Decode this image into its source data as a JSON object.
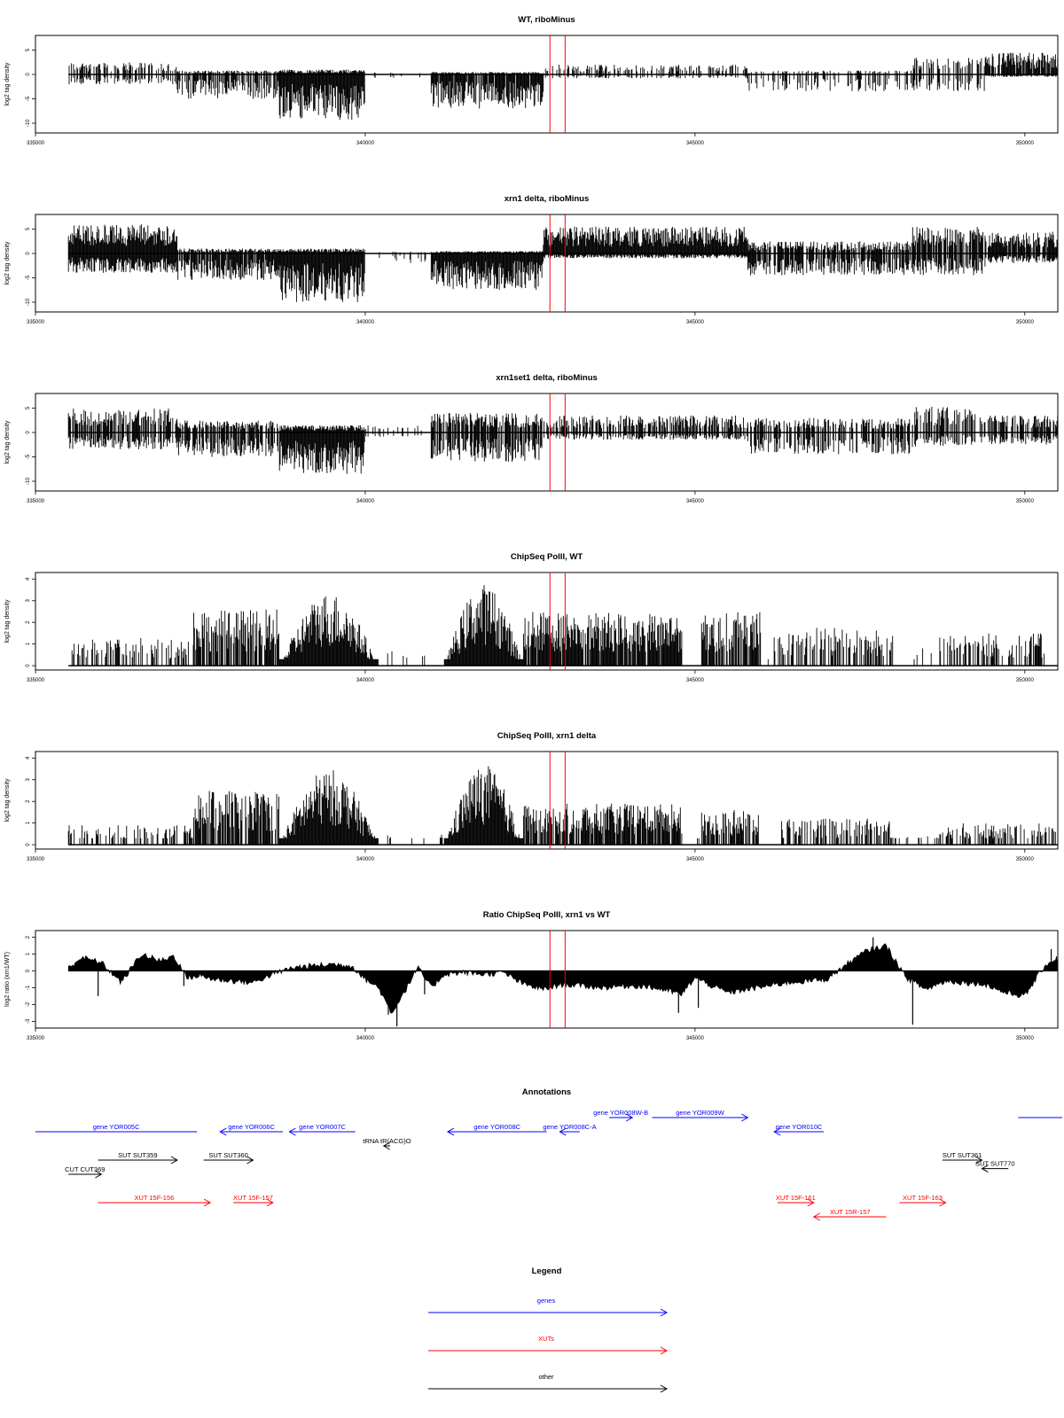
{
  "colors": {
    "gene": "#0000ff",
    "xut": "#ff0000",
    "other": "#000000",
    "marker": "#ff0000",
    "bars": "#000000"
  },
  "x_axis": {
    "xlim": [
      335000,
      350500
    ],
    "ticks": [
      335000,
      340000,
      345000,
      350000
    ],
    "tick_labels": [
      "335000",
      "340000",
      "345000",
      "350000"
    ]
  },
  "markers": [
    342800,
    343030
  ],
  "chart_data": [
    {
      "type": "bar",
      "title": "WT, riboMinus",
      "ylabel": "log2 tag density",
      "ylim": [
        -12,
        8
      ],
      "yticks": [
        5,
        0,
        -5,
        -10
      ],
      "ytick_labels": [
        "5",
        "0",
        "-5",
        "-10"
      ],
      "x_range": [
        335500,
        350500
      ],
      "segments": [
        {
          "x": [
            335500,
            337150
          ],
          "pos": 2.5,
          "neg": -2.0,
          "dens": 0.5
        },
        {
          "x": [
            337150,
            338700
          ],
          "pos": 0.8,
          "neg": -5.0,
          "dens": 0.7
        },
        {
          "x": [
            338700,
            340000
          ],
          "pos": 1.0,
          "neg": -9.5,
          "dens": 1.0
        },
        {
          "x": [
            340000,
            341000
          ],
          "pos": 0.4,
          "neg": -1.0,
          "dens": 0.08
        },
        {
          "x": [
            341000,
            342700
          ],
          "pos": 0.5,
          "neg": -7.0,
          "dens": 0.9
        },
        {
          "x": [
            342700,
            345800
          ],
          "pos": 2.0,
          "neg": -0.8,
          "dens": 0.4
        },
        {
          "x": [
            345800,
            348300
          ],
          "pos": 0.8,
          "neg": -3.5,
          "dens": 0.35
        },
        {
          "x": [
            348300,
            349400
          ],
          "pos": 3.5,
          "neg": -3.5,
          "dens": 0.45
        },
        {
          "x": [
            349400,
            350500
          ],
          "pos": 4.5,
          "neg": -0.5,
          "dens": 0.8
        }
      ]
    },
    {
      "type": "bar",
      "title": "xrn1 delta, riboMinus",
      "ylabel": "log2 tag density",
      "ylim": [
        -12,
        8
      ],
      "yticks": [
        5,
        0,
        -5,
        -10
      ],
      "ytick_labels": [
        "5",
        "0",
        "-5",
        "-10"
      ],
      "x_range": [
        335500,
        350500
      ],
      "segments": [
        {
          "x": [
            335500,
            337150
          ],
          "pos": 6.0,
          "neg": -4.0,
          "dens": 1.0
        },
        {
          "x": [
            337150,
            338700
          ],
          "pos": 1.0,
          "neg": -5.5,
          "dens": 0.9
        },
        {
          "x": [
            338700,
            340000
          ],
          "pos": 1.0,
          "neg": -10.0,
          "dens": 1.0
        },
        {
          "x": [
            340000,
            341000
          ],
          "pos": 0.4,
          "neg": -2.0,
          "dens": 0.1
        },
        {
          "x": [
            341000,
            342700
          ],
          "pos": 0.5,
          "neg": -7.5,
          "dens": 1.0
        },
        {
          "x": [
            342700,
            345800
          ],
          "pos": 5.5,
          "neg": -1.0,
          "dens": 1.0
        },
        {
          "x": [
            345800,
            348300
          ],
          "pos": 2.5,
          "neg": -4.5,
          "dens": 0.8
        },
        {
          "x": [
            348300,
            349400
          ],
          "pos": 5.5,
          "neg": -4.5,
          "dens": 0.8
        },
        {
          "x": [
            349400,
            350500
          ],
          "pos": 4.5,
          "neg": -2.0,
          "dens": 0.85
        }
      ]
    },
    {
      "type": "bar",
      "title": "xrn1set1 delta, riboMinus",
      "ylabel": "log2 tag density",
      "ylim": [
        -12,
        8
      ],
      "yticks": [
        5,
        0,
        -5,
        -10
      ],
      "ytick_labels": [
        "5",
        "0",
        "-5",
        "-10"
      ],
      "x_range": [
        335500,
        350500
      ],
      "segments": [
        {
          "x": [
            335500,
            337150
          ],
          "pos": 5.0,
          "neg": -3.5,
          "dens": 0.7
        },
        {
          "x": [
            337150,
            338700
          ],
          "pos": 2.5,
          "neg": -5.0,
          "dens": 0.7
        },
        {
          "x": [
            338700,
            340000
          ],
          "pos": 1.5,
          "neg": -8.5,
          "dens": 1.0
        },
        {
          "x": [
            340000,
            341000
          ],
          "pos": 1.5,
          "neg": -1.0,
          "dens": 0.12
        },
        {
          "x": [
            341000,
            342700
          ],
          "pos": 4.0,
          "neg": -6.0,
          "dens": 0.8
        },
        {
          "x": [
            342700,
            345800
          ],
          "pos": 3.5,
          "neg": -1.5,
          "dens": 0.6
        },
        {
          "x": [
            345800,
            348300
          ],
          "pos": 3.0,
          "neg": -4.5,
          "dens": 0.6
        },
        {
          "x": [
            348300,
            349400
          ],
          "pos": 5.5,
          "neg": -3.0,
          "dens": 0.55
        },
        {
          "x": [
            349400,
            350500
          ],
          "pos": 3.5,
          "neg": -2.5,
          "dens": 0.55
        }
      ]
    },
    {
      "type": "bar",
      "title": "ChipSeq PolII, WT",
      "ylabel": "log2 tag density",
      "ylim": [
        -0.2,
        4.3
      ],
      "yticks": [
        0,
        1,
        2,
        3,
        4
      ],
      "ytick_labels": [
        "0",
        "1",
        "2",
        "3",
        "4"
      ],
      "x_range": [
        335500,
        350500
      ],
      "segments": [
        {
          "x": [
            335500,
            337400
          ],
          "pos": 1.3,
          "neg": 0,
          "dens": 0.35
        },
        {
          "x": [
            337400,
            338700
          ],
          "pos": 2.6,
          "neg": 0,
          "dens": 0.8
        },
        {
          "x": [
            338700,
            340200
          ],
          "pos": 3.4,
          "neg": 0,
          "dens": 1.0,
          "shape": "arch"
        },
        {
          "x": [
            340200,
            341200
          ],
          "pos": 0.9,
          "neg": 0,
          "dens": 0.04
        },
        {
          "x": [
            341200,
            342400
          ],
          "pos": 3.8,
          "neg": 0,
          "dens": 1.0,
          "shape": "arch"
        },
        {
          "x": [
            342400,
            344800
          ],
          "pos": 2.5,
          "neg": 0,
          "dens": 0.9
        },
        {
          "x": [
            344800,
            345100
          ],
          "pos": 0.3,
          "neg": 0,
          "dens": 0.05
        },
        {
          "x": [
            345100,
            346000
          ],
          "pos": 2.5,
          "neg": 0,
          "dens": 0.8
        },
        {
          "x": [
            346000,
            346200
          ],
          "pos": 0.3,
          "neg": 0,
          "dens": 0.05
        },
        {
          "x": [
            346200,
            348000
          ],
          "pos": 1.8,
          "neg": 0,
          "dens": 0.5
        },
        {
          "x": [
            348000,
            348700
          ],
          "pos": 0.8,
          "neg": 0,
          "dens": 0.08
        },
        {
          "x": [
            348700,
            350300
          ],
          "pos": 1.5,
          "neg": 0,
          "dens": 0.45
        }
      ]
    },
    {
      "type": "bar",
      "title": "ChipSeq PolII, xrn1 delta",
      "ylabel": "log2 tag density",
      "ylim": [
        -0.2,
        4.3
      ],
      "yticks": [
        0,
        1,
        2,
        3,
        4
      ],
      "ytick_labels": [
        "0",
        "1",
        "2",
        "3",
        "4"
      ],
      "x_range": [
        335500,
        350500
      ],
      "segments": [
        {
          "x": [
            335500,
            337400
          ],
          "pos": 0.9,
          "neg": 0,
          "dens": 0.4
        },
        {
          "x": [
            337400,
            338700
          ],
          "pos": 2.5,
          "neg": 0,
          "dens": 0.8
        },
        {
          "x": [
            338700,
            340200
          ],
          "pos": 3.5,
          "neg": 0,
          "dens": 1.0,
          "shape": "arch"
        },
        {
          "x": [
            340200,
            341200
          ],
          "pos": 0.5,
          "neg": 0,
          "dens": 0.05
        },
        {
          "x": [
            341200,
            342400
          ],
          "pos": 3.7,
          "neg": 0,
          "dens": 1.0,
          "shape": "arch"
        },
        {
          "x": [
            342400,
            344800
          ],
          "pos": 1.9,
          "neg": 0,
          "dens": 0.85
        },
        {
          "x": [
            344800,
            345100
          ],
          "pos": 0.2,
          "neg": 0,
          "dens": 0.05
        },
        {
          "x": [
            345100,
            346000
          ],
          "pos": 1.6,
          "neg": 0,
          "dens": 0.7
        },
        {
          "x": [
            346000,
            346300
          ],
          "pos": 0.2,
          "neg": 0,
          "dens": 0.05
        },
        {
          "x": [
            346300,
            348000
          ],
          "pos": 1.2,
          "neg": 0,
          "dens": 0.5
        },
        {
          "x": [
            348000,
            348700
          ],
          "pos": 0.4,
          "neg": 0,
          "dens": 0.1
        },
        {
          "x": [
            348700,
            350500
          ],
          "pos": 1.0,
          "neg": 0,
          "dens": 0.45
        }
      ]
    },
    {
      "type": "area",
      "title": "Ratio ChipSeq PolII, xrn1 vs WT",
      "ylabel": "log2 ratio (xrn1/WT)",
      "ylim": [
        -3.4,
        2.4
      ],
      "yticks": [
        2,
        1,
        0,
        -1,
        -2,
        -3
      ],
      "ytick_labels": [
        "2",
        "1",
        "0",
        "-1",
        "-2",
        "-3"
      ],
      "x": [
        335500,
        335700,
        336000,
        336300,
        336600,
        336900,
        337100,
        337300,
        337500,
        337700,
        338000,
        338300,
        338600,
        338900,
        339200,
        339500,
        339800,
        340000,
        340200,
        340400,
        340600,
        340800,
        341000,
        341200,
        341500,
        341800,
        342100,
        342400,
        342700,
        343000,
        343300,
        343600,
        343900,
        344200,
        344500,
        344800,
        345000,
        345200,
        345500,
        345800,
        346100,
        346400,
        346700,
        347000,
        347300,
        347600,
        347900,
        348200,
        348500,
        348800,
        349100,
        349400,
        349700,
        350000,
        350300,
        350500
      ],
      "y": [
        0.2,
        0.8,
        0.5,
        -0.7,
        1.0,
        0.6,
        0.9,
        -0.4,
        -0.3,
        -0.5,
        -0.6,
        -0.7,
        -0.2,
        0.2,
        0.3,
        0.4,
        0.3,
        -0.5,
        -1.0,
        -2.5,
        -1.2,
        0.2,
        -1.0,
        -0.2,
        -0.1,
        -0.2,
        -0.1,
        -0.8,
        -1.1,
        -0.8,
        -0.9,
        -1.0,
        -0.9,
        -0.9,
        -1.1,
        -1.4,
        -0.4,
        -0.8,
        -1.3,
        -1.1,
        -0.9,
        -0.7,
        -0.6,
        -0.5,
        0.4,
        1.2,
        1.5,
        -0.4,
        -1.1,
        -0.6,
        -0.7,
        -0.8,
        -1.3,
        -1.5,
        0.3,
        0.8
      ],
      "spikes": [
        [
          335950,
          -1.5
        ],
        [
          337250,
          -0.9
        ],
        [
          340350,
          -2.6
        ],
        [
          340480,
          -3.3
        ],
        [
          340900,
          -1.4
        ],
        [
          344750,
          -2.5
        ],
        [
          345050,
          -2.2
        ],
        [
          348300,
          -3.2
        ],
        [
          347700,
          2.0
        ],
        [
          350400,
          1.3
        ]
      ]
    }
  ],
  "annotations": {
    "title": "Annotations",
    "features": [
      {
        "label": "gene YOR005C",
        "type": "gene",
        "x1": 335000,
        "x2": 337450,
        "dir": "none",
        "row": 0
      },
      {
        "label": "gene YOR006C",
        "type": "gene",
        "x1": 337800,
        "x2": 338750,
        "dir": "left",
        "row": 0
      },
      {
        "label": "gene YOR007C",
        "type": "gene",
        "x1": 338850,
        "x2": 339850,
        "dir": "left",
        "row": 0
      },
      {
        "label": "gene YOR008C",
        "type": "gene",
        "x1": 341250,
        "x2": 342750,
        "dir": "left",
        "row": 0
      },
      {
        "label": "gene YOR008C-A",
        "type": "gene",
        "x1": 342950,
        "x2": 343250,
        "dir": "left",
        "row": 0
      },
      {
        "label": "gene YOR008W-B",
        "type": "gene",
        "x1": 343700,
        "x2": 344050,
        "dir": "right",
        "row": -1
      },
      {
        "label": "gene YOR009W",
        "type": "gene",
        "x1": 344350,
        "x2": 345800,
        "dir": "right",
        "row": -1
      },
      {
        "label": "gene YOR010C",
        "type": "gene",
        "x1": 346200,
        "x2": 346950,
        "dir": "left",
        "row": 0
      },
      {
        "label": "",
        "type": "gene",
        "x1": 349900,
        "x2": 351000,
        "dir": "none",
        "row": -1
      },
      {
        "label": "tRNA tR(ACG)O",
        "type": "other",
        "x1": 340280,
        "x2": 340380,
        "dir": "left",
        "row": 1
      },
      {
        "label": "SUT SUT359",
        "type": "other",
        "x1": 335950,
        "x2": 337150,
        "dir": "right",
        "row": 2
      },
      {
        "label": "SUT SUT360",
        "type": "other",
        "x1": 337550,
        "x2": 338300,
        "dir": "right",
        "row": 2
      },
      {
        "label": "CUT CUT369",
        "type": "other",
        "x1": 335500,
        "x2": 336000,
        "dir": "right",
        "row": 3
      },
      {
        "label": "SUT SUT361",
        "type": "other",
        "x1": 348750,
        "x2": 349350,
        "dir": "right",
        "row": 2
      },
      {
        "label": "SUT SUT770",
        "type": "other",
        "x1": 349350,
        "x2": 349750,
        "dir": "left",
        "row": 2.6
      },
      {
        "label": "XUT 15F-156",
        "type": "xut",
        "x1": 335950,
        "x2": 337650,
        "dir": "right",
        "row": 5
      },
      {
        "label": "XUT 15F-157",
        "type": "xut",
        "x1": 338000,
        "x2": 338600,
        "dir": "right",
        "row": 5
      },
      {
        "label": "XUT 15F-161",
        "type": "xut",
        "x1": 346250,
        "x2": 346800,
        "dir": "right",
        "row": 5
      },
      {
        "label": "XUT 15R-157",
        "type": "xut",
        "x1": 346800,
        "x2": 347900,
        "dir": "left",
        "row": 6
      },
      {
        "label": "XUT 15F-163",
        "type": "xut",
        "x1": 348100,
        "x2": 348800,
        "dir": "right",
        "row": 5
      }
    ]
  },
  "legend": {
    "title": "Legend",
    "items": [
      {
        "label": "genes",
        "type": "gene"
      },
      {
        "label": "XUTs",
        "type": "xut"
      },
      {
        "label": "other",
        "type": "other"
      }
    ]
  }
}
